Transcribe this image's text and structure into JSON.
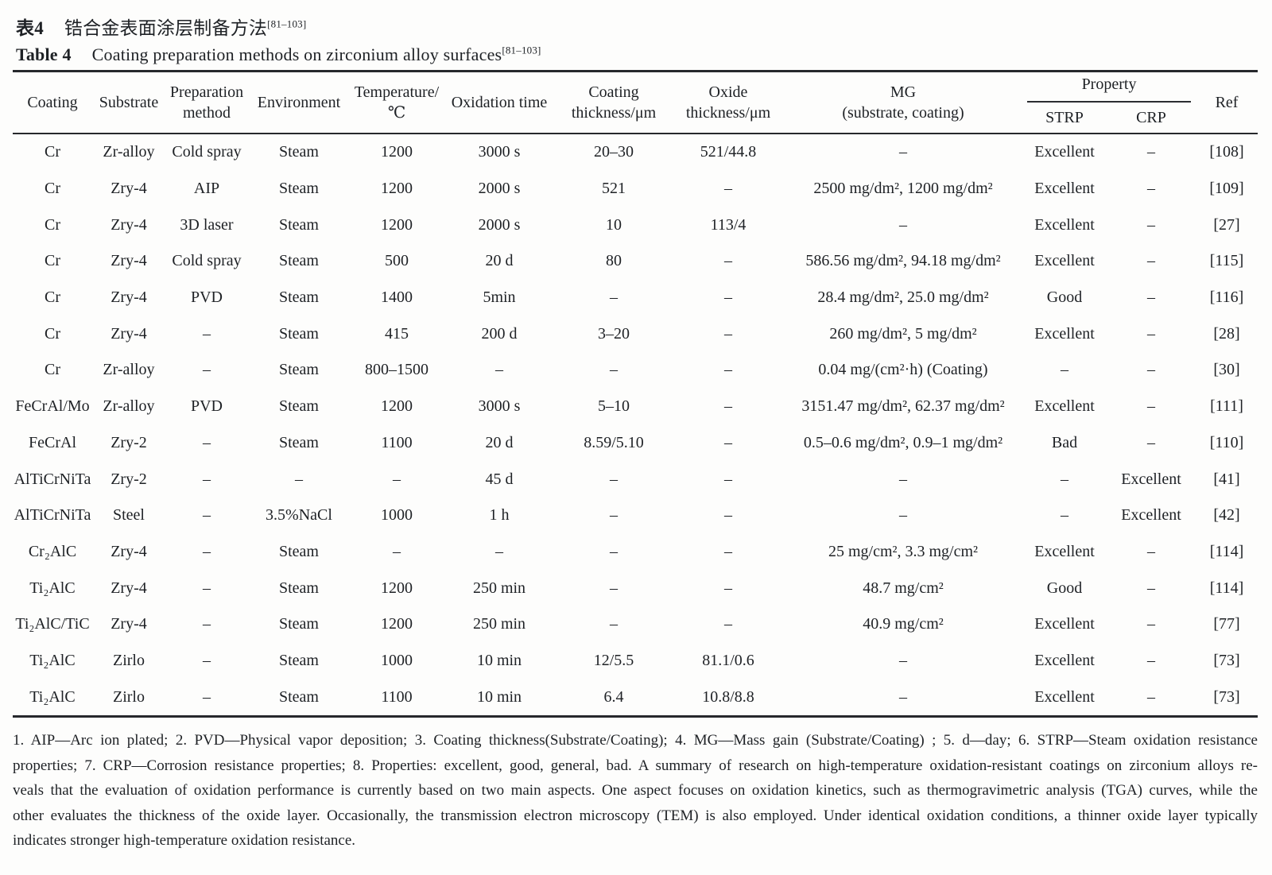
{
  "title": {
    "zh_label": "表4",
    "zh_text": "锆合金表面涂层制备方法",
    "en_label": "Table 4",
    "en_text": "Coating preparation methods on zirconium alloy surfaces",
    "ref_sup": "[81–103]"
  },
  "table": {
    "headers": {
      "coating": "Coating",
      "substrate": "Substrate",
      "preparation_line1": "Preparation",
      "preparation_line2": "method",
      "environment": "Environment",
      "temperature_line1": "Temperature/",
      "temperature_line2": "℃",
      "oxidation_time": "Oxidation time",
      "coating_thickness_line1": "Coating",
      "coating_thickness_line2": "thickness/μm",
      "oxide_thickness_line1": "Oxide",
      "oxide_thickness_line2": "thickness/μm",
      "mg_line1": "MG",
      "mg_line2": "(substrate, coating)",
      "property": "Property",
      "strp": "STRP",
      "crp": "CRP",
      "ref": "Ref"
    },
    "rows": [
      [
        "Cr",
        "Zr-alloy",
        "Cold spray",
        "Steam",
        "1200",
        "3000 s",
        "20–30",
        "521/44.8",
        "–",
        "Excellent",
        "–",
        "[108]"
      ],
      [
        "Cr",
        "Zry-4",
        "AIP",
        "Steam",
        "1200",
        "2000 s",
        "521",
        "–",
        "2500 mg/dm², 1200 mg/dm²",
        "Excellent",
        "–",
        "[109]"
      ],
      [
        "Cr",
        "Zry-4",
        "3D laser",
        "Steam",
        "1200",
        "2000 s",
        "10",
        "113/4",
        "–",
        "Excellent",
        "–",
        "[27]"
      ],
      [
        "Cr",
        "Zry-4",
        "Cold spray",
        "Steam",
        "500",
        "20 d",
        "80",
        "–",
        "586.56 mg/dm², 94.18 mg/dm²",
        "Excellent",
        "–",
        "[115]"
      ],
      [
        "Cr",
        "Zry-4",
        "PVD",
        "Steam",
        "1400",
        "5min",
        "–",
        "–",
        "28.4 mg/dm², 25.0 mg/dm²",
        "Good",
        "–",
        "[116]"
      ],
      [
        "Cr",
        "Zry-4",
        "–",
        "Steam",
        "415",
        "200 d",
        "3–20",
        "–",
        "260 mg/dm², 5 mg/dm²",
        "Excellent",
        "–",
        "[28]"
      ],
      [
        "Cr",
        "Zr-alloy",
        "–",
        "Steam",
        "800–1500",
        "–",
        "–",
        "–",
        "0.04 mg/(cm²·h) (Coating)",
        "–",
        "–",
        "[30]"
      ],
      [
        "FeCrAl/Mo",
        "Zr-alloy",
        "PVD",
        "Steam",
        "1200",
        "3000 s",
        "5–10",
        "–",
        "3151.47 mg/dm², 62.37 mg/dm²",
        "Excellent",
        "–",
        "[111]"
      ],
      [
        "FeCrAl",
        "Zry-2",
        "–",
        "Steam",
        "1100",
        "20 d",
        "8.59/5.10",
        "–",
        "0.5–0.6 mg/dm², 0.9–1 mg/dm²",
        "Bad",
        "–",
        "[110]"
      ],
      [
        "AlTiCrNiTa",
        "Zry-2",
        "–",
        "–",
        "–",
        "45 d",
        "–",
        "–",
        "–",
        "–",
        "Excellent",
        "[41]"
      ],
      [
        "AlTiCrNiTa",
        "Steel",
        "–",
        "3.5%NaCl",
        "1000",
        "1 h",
        "–",
        "–",
        "–",
        "–",
        "Excellent",
        "[42]"
      ],
      [
        "Cr₂AlC",
        "Zry-4",
        "–",
        "Steam",
        "–",
        "–",
        "–",
        "–",
        "25 mg/cm², 3.3 mg/cm²",
        "Excellent",
        "–",
        "[114]"
      ],
      [
        "Ti₂AlC",
        "Zry-4",
        "–",
        "Steam",
        "1200",
        "250 min",
        "–",
        "–",
        "48.7 mg/cm²",
        "Good",
        "–",
        "[114]"
      ],
      [
        "Ti₂AlC/TiC",
        "Zry-4",
        "–",
        "Steam",
        "1200",
        "250 min",
        "–",
        "–",
        "40.9 mg/cm²",
        "Excellent",
        "–",
        "[77]"
      ],
      [
        "Ti₂AlC",
        "Zirlo",
        "–",
        "Steam",
        "1000",
        "10 min",
        "12/5.5",
        "81.1/0.6",
        "–",
        "Excellent",
        "–",
        "[73]"
      ],
      [
        "Ti₂AlC",
        "Zirlo",
        "–",
        "Steam",
        "1100",
        "10 min",
        "6.4",
        "10.8/8.8",
        "–",
        "Excellent",
        "–",
        "[73]"
      ]
    ]
  },
  "footnote": {
    "lines": [
      "1. AIP—Arc ion plated; 2. PVD—Physical vapor deposition; 3. Coating thickness(Substrate/Coating); 4. MG—Mass gain (Substrate/Coating) ; 5. d—day; 6. STRP—Steam oxidation resistance",
      "properties; 7. CRP—Corrosion resistance properties; 8. Properties: excellent, good, general, bad. A summary of research on high-temperature oxidation-resistant coatings on zirconium alloys re-",
      "veals that the evaluation of oxidation performance is currently based on two main aspects. One aspect focuses on oxidation kinetics, such as thermogravimetric analysis (TGA) curves, while the",
      "other evaluates the thickness of the oxide layer. Occasionally, the transmission electron microscopy (TEM) is also employed. Under identical oxidation conditions, a thinner oxide layer typically",
      "indicates stronger high-temperature oxidation resistance."
    ]
  }
}
